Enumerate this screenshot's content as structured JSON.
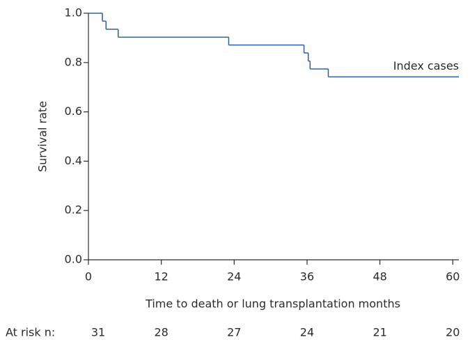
{
  "chart_data": {
    "type": "line",
    "step": true,
    "x_label": "Time to death or lung transplantation months",
    "y_label": "Survival rate",
    "series": [
      {
        "name": "Index cases",
        "color": "#2b5fa0",
        "x": [
          0,
          2.3,
          2.9,
          4.9,
          23.1,
          35.5,
          36.2,
          36.5,
          39.5,
          61
        ],
        "values": [
          1.0,
          0.968,
          0.935,
          0.903,
          0.871,
          0.839,
          0.806,
          0.774,
          0.742,
          0.742
        ]
      }
    ],
    "xlim": [
      0,
      61
    ],
    "xticks": [
      0,
      12,
      24,
      36,
      48,
      60
    ],
    "ylim": [
      0,
      1
    ],
    "yticks": [
      {
        "value": 0,
        "label": "0.0"
      },
      {
        "value": 0.2,
        "label": "0.2"
      },
      {
        "value": 0.4,
        "label": "0.4"
      },
      {
        "value": 0.6,
        "label": "0.6"
      },
      {
        "value": 0.8,
        "label": "0.8"
      },
      {
        "value": 1,
        "label": "1.0"
      }
    ],
    "at_risk": {
      "label": "At risk n:",
      "values": [
        31,
        28,
        27,
        24,
        21,
        20
      ]
    }
  }
}
